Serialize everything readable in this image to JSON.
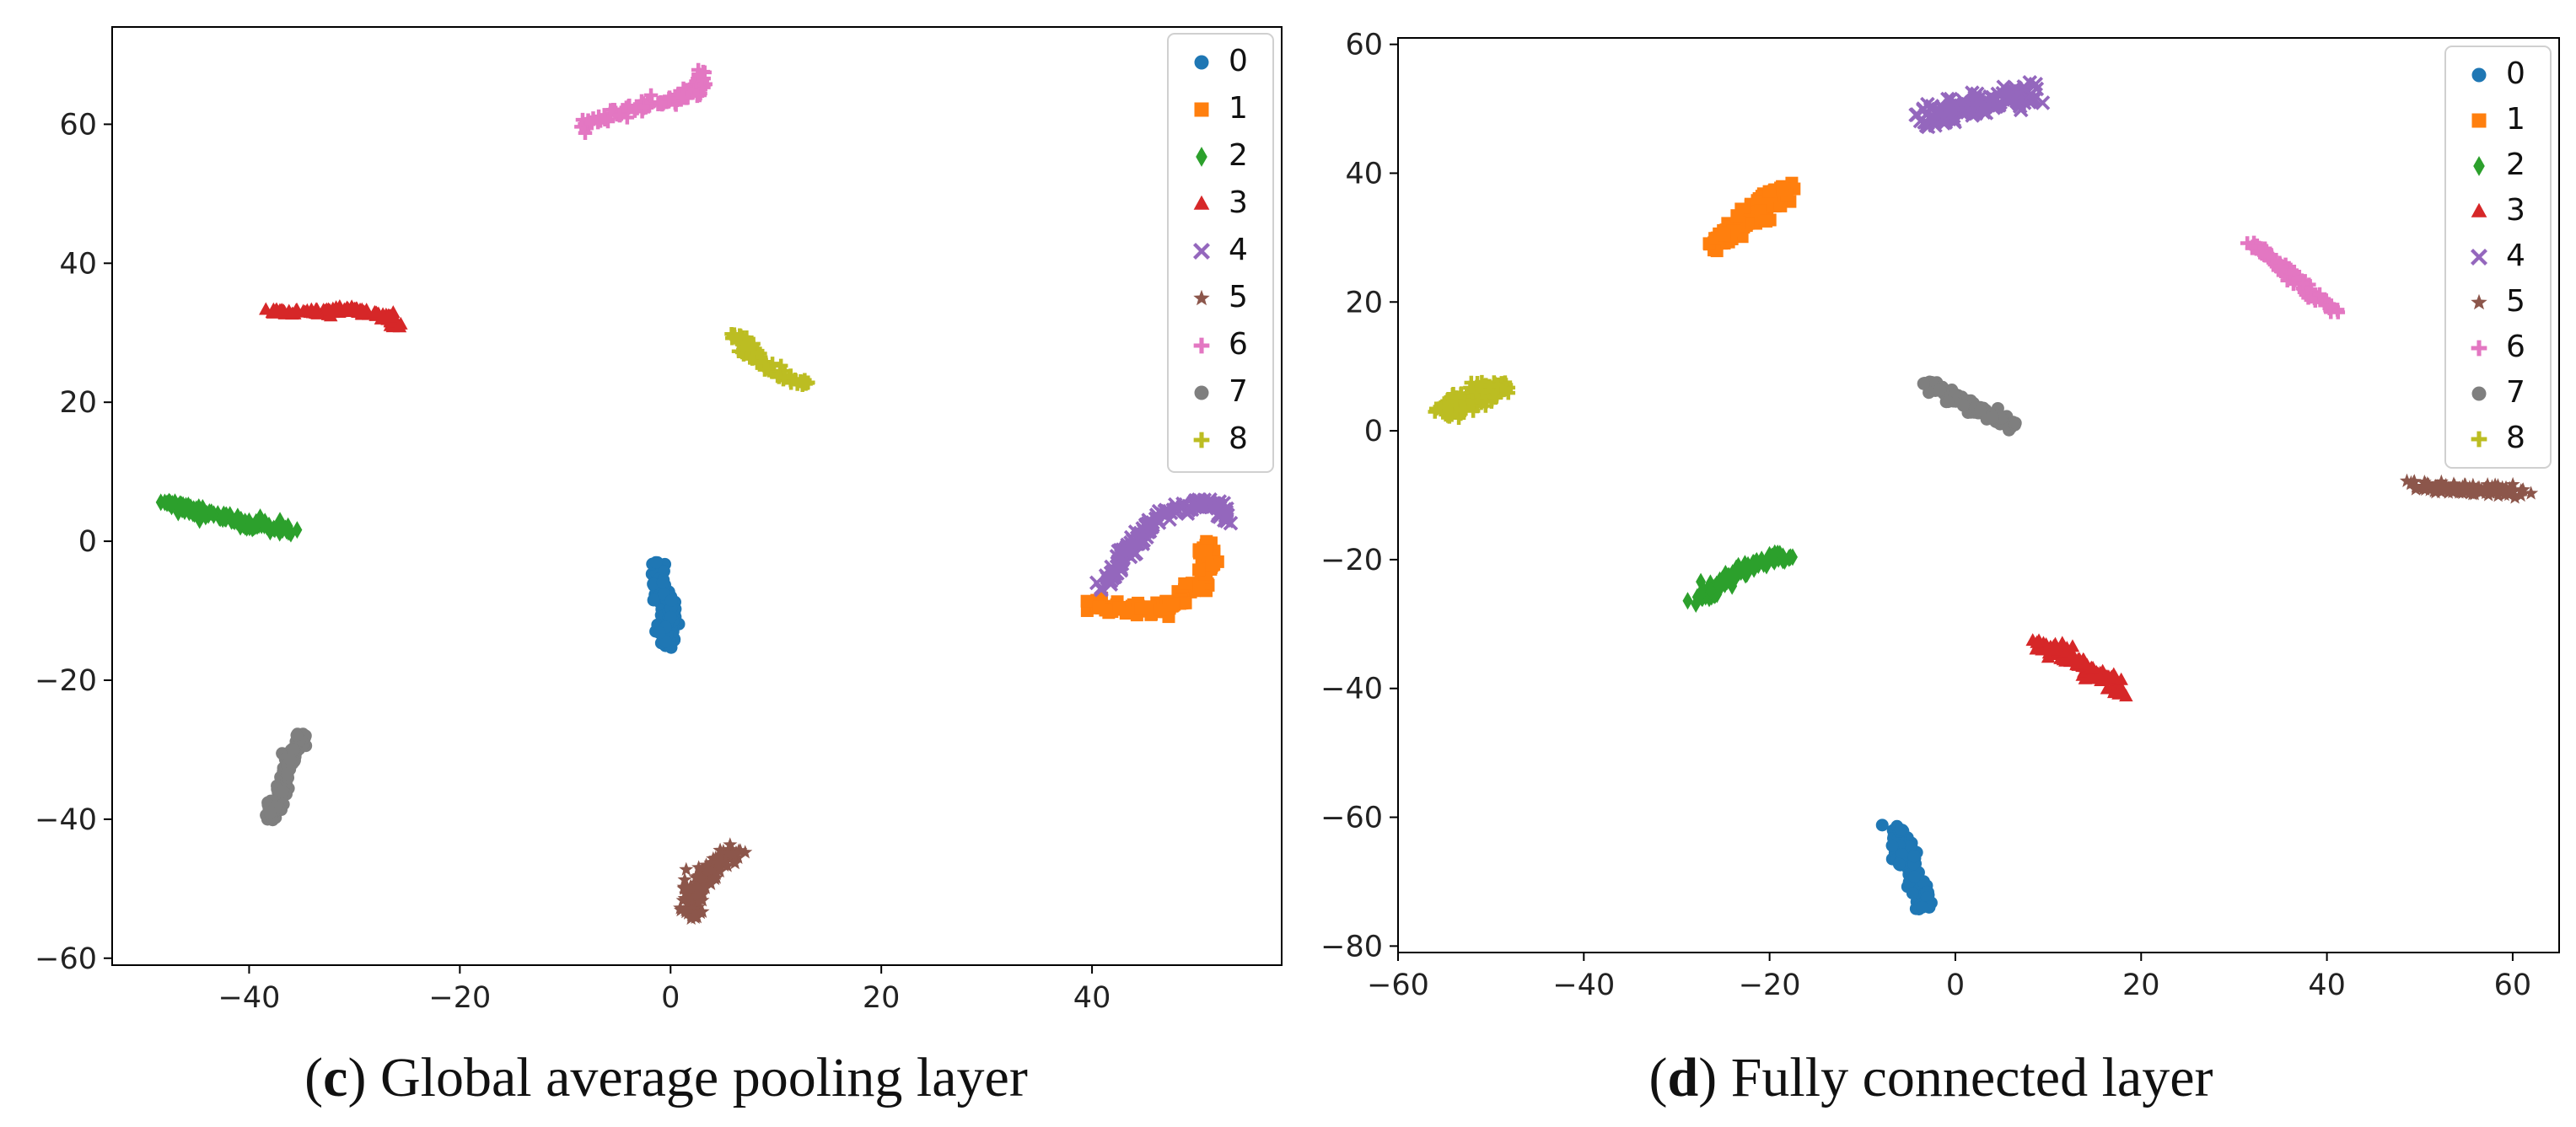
{
  "chart_data": [
    {
      "type": "scatter",
      "panel": "c",
      "caption_letter": "c",
      "caption_text": "Global average pooling layer",
      "xlim": [
        -53,
        58
      ],
      "ylim": [
        -61,
        74
      ],
      "xticks": [
        -40,
        -20,
        0,
        20,
        40
      ],
      "yticks": [
        -60,
        -40,
        -20,
        0,
        20,
        40,
        60
      ],
      "xtick_labels": [
        "−40",
        "−20",
        "0",
        "20",
        "40"
      ],
      "ytick_labels": [
        "−60",
        "−40",
        "−20",
        "0",
        "20",
        "40",
        "60"
      ],
      "legend_position": "top-right",
      "series": [
        {
          "name": "0",
          "label": "0",
          "color": "#1f77b4",
          "marker": "circle",
          "shape": "path",
          "path": [
            [
              -1.5,
              -3
            ],
            [
              -1,
              -7
            ],
            [
              0,
              -10
            ],
            [
              -0.5,
              -13
            ],
            [
              0,
              -15
            ]
          ],
          "spread": 1.0,
          "count": 130
        },
        {
          "name": "1",
          "label": "1",
          "color": "#ff7f0e",
          "marker": "square",
          "shape": "path",
          "path": [
            [
              40,
              -9
            ],
            [
              43,
              -9.5
            ],
            [
              46,
              -10
            ],
            [
              48,
              -9
            ],
            [
              50,
              -7
            ],
            [
              51,
              -4
            ],
            [
              51,
              0
            ]
          ],
          "spread": 0.9,
          "count": 160
        },
        {
          "name": "2",
          "label": "2",
          "color": "#2ca02c",
          "marker": "diamond",
          "shape": "path",
          "path": [
            [
              -48,
              5.5
            ],
            [
              -44,
              4
            ],
            [
              -40,
              2.5
            ],
            [
              -36,
              1.5
            ]
          ],
          "spread": 0.8,
          "count": 130
        },
        {
          "name": "3",
          "label": "3",
          "color": "#d62728",
          "marker": "triangle",
          "shape": "path",
          "path": [
            [
              -38,
              33
            ],
            [
              -34,
              33
            ],
            [
              -30,
              33.3
            ],
            [
              -27,
              32.5
            ],
            [
              -26,
              31
            ]
          ],
          "spread": 0.6,
          "count": 130
        },
        {
          "name": "4",
          "label": "4",
          "color": "#9467bd",
          "marker": "x",
          "shape": "path",
          "path": [
            [
              41,
              -7
            ],
            [
              43,
              -2
            ],
            [
              45,
              1.5
            ],
            [
              47,
              4
            ],
            [
              50,
              5.5
            ],
            [
              52,
              5
            ],
            [
              52.5,
              3
            ]
          ],
          "spread": 0.9,
          "count": 150
        },
        {
          "name": "5",
          "label": "5",
          "color": "#8c564b",
          "marker": "star",
          "shape": "path",
          "path": [
            [
              2,
              -54
            ],
            [
              2,
              -51
            ],
            [
              3,
              -48
            ],
            [
              5,
              -45.5
            ],
            [
              6.5,
              -44.5
            ]
          ],
          "spread": 1.4,
          "count": 140
        },
        {
          "name": "6",
          "label": "6",
          "color": "#e377c2",
          "marker": "plus",
          "shape": "path",
          "path": [
            [
              -8,
              60
            ],
            [
              -4,
              62
            ],
            [
              0,
              63.5
            ],
            [
              2.5,
              65
            ],
            [
              3,
              67.5
            ]
          ],
          "spread": 0.8,
          "count": 120
        },
        {
          "name": "7",
          "label": "7",
          "color": "#7f7f7f",
          "marker": "circle",
          "shape": "path",
          "path": [
            [
              -38,
              -40
            ],
            [
              -37,
              -36
            ],
            [
              -36,
              -31
            ],
            [
              -35,
              -28
            ]
          ],
          "spread": 0.8,
          "count": 110
        },
        {
          "name": "8",
          "label": "8",
          "color": "#bcbd22",
          "marker": "plus",
          "shape": "path",
          "path": [
            [
              6,
              30
            ],
            [
              8,
              26.5
            ],
            [
              10.5,
              24
            ],
            [
              13,
              22.5
            ]
          ],
          "spread": 0.8,
          "count": 90
        }
      ]
    },
    {
      "type": "scatter",
      "panel": "d",
      "caption_letter": "d",
      "caption_text": "Fully connected layer",
      "xlim": [
        -60,
        65
      ],
      "ylim": [
        -81,
        61
      ],
      "xticks": [
        -60,
        -40,
        -20,
        0,
        20,
        40,
        60
      ],
      "yticks": [
        -80,
        -60,
        -40,
        -20,
        0,
        20,
        40,
        60
      ],
      "xtick_labels": [
        "−60",
        "−40",
        "−20",
        "0",
        "20",
        "40",
        "60"
      ],
      "ytick_labels": [
        "−80",
        "−60",
        "−40",
        "−20",
        "0",
        "20",
        "40",
        "60"
      ],
      "legend_position": "top-right",
      "series": [
        {
          "name": "0",
          "label": "0",
          "color": "#1f77b4",
          "marker": "circle",
          "shape": "path",
          "path": [
            [
              -6.5,
              -62
            ],
            [
              -5,
              -67
            ],
            [
              -4,
              -71
            ],
            [
              -3.5,
              -74
            ]
          ],
          "spread": 1.2,
          "count": 120
        },
        {
          "name": "1",
          "label": "1",
          "color": "#ff7f0e",
          "marker": "square",
          "shape": "path",
          "path": [
            [
              -26,
              29
            ],
            [
              -23,
              32
            ],
            [
              -20.5,
              35
            ],
            [
              -18,
              38
            ]
          ],
          "spread": 1.4,
          "count": 140
        },
        {
          "name": "2",
          "label": "2",
          "color": "#2ca02c",
          "marker": "diamond",
          "shape": "path",
          "path": [
            [
              -28,
              -26.5
            ],
            [
              -25,
              -23.5
            ],
            [
              -22,
              -21
            ],
            [
              -18,
              -19
            ]
          ],
          "spread": 1.0,
          "count": 120
        },
        {
          "name": "3",
          "label": "3",
          "color": "#d62728",
          "marker": "triangle",
          "shape": "path",
          "path": [
            [
              9,
              -33
            ],
            [
              12,
              -35
            ],
            [
              15,
              -37.5
            ],
            [
              18,
              -40.5
            ]
          ],
          "spread": 1.1,
          "count": 120
        },
        {
          "name": "4",
          "label": "4",
          "color": "#9467bd",
          "marker": "x",
          "shape": "path",
          "path": [
            [
              -3,
              48
            ],
            [
              0,
              50
            ],
            [
              4,
              51
            ],
            [
              8,
              52.5
            ]
          ],
          "spread": 2.0,
          "count": 160
        },
        {
          "name": "5",
          "label": "5",
          "color": "#8c564b",
          "marker": "star",
          "shape": "path",
          "path": [
            [
              49,
              -8.5
            ],
            [
              53,
              -9
            ],
            [
              57,
              -9.2
            ],
            [
              61,
              -9.5
            ]
          ],
          "spread": 1.0,
          "count": 130
        },
        {
          "name": "6",
          "label": "6",
          "color": "#e377c2",
          "marker": "plus",
          "shape": "path",
          "path": [
            [
              32,
              29
            ],
            [
              35,
              25.5
            ],
            [
              38,
              22
            ],
            [
              41,
              18.5
            ]
          ],
          "spread": 0.8,
          "count": 100
        },
        {
          "name": "7",
          "label": "7",
          "color": "#7f7f7f",
          "marker": "circle",
          "shape": "path",
          "path": [
            [
              -3,
              7.5
            ],
            [
              0,
              5
            ],
            [
              3,
              3
            ],
            [
              6.5,
              0.5
            ]
          ],
          "spread": 0.9,
          "count": 110
        },
        {
          "name": "8",
          "label": "8",
          "color": "#bcbd22",
          "marker": "plus",
          "shape": "path",
          "path": [
            [
              -55,
              3
            ],
            [
              -53,
              4.5
            ],
            [
              -51,
              5.5
            ],
            [
              -49,
              7
            ]
          ],
          "spread": 1.6,
          "count": 150
        }
      ]
    }
  ]
}
